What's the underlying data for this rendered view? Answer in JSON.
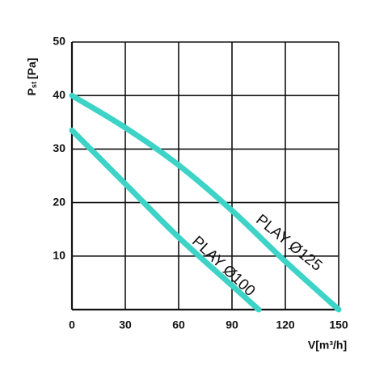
{
  "chart_data": {
    "type": "line",
    "x_label": "V[m³/h]",
    "y_label": {
      "main": "P",
      "sub": "st",
      "unit": "[Pa]"
    },
    "xlim": [
      0,
      150
    ],
    "ylim": [
      0,
      50
    ],
    "xticks": [
      0,
      30,
      60,
      90,
      120,
      150
    ],
    "yticks": [
      10,
      20,
      30,
      40,
      50
    ],
    "grid": true,
    "series": [
      {
        "name": "PLAY Ø125",
        "color": "#3ed3c7",
        "x": [
          0,
          30,
          60,
          90,
          120,
          150
        ],
        "values": [
          40,
          34,
          27,
          18.5,
          9,
          0
        ]
      },
      {
        "name": "PLAY Ø100",
        "color": "#3ed3c7",
        "x": [
          0,
          30,
          60,
          90,
          105
        ],
        "values": [
          33.5,
          23.5,
          13.5,
          4.5,
          0
        ]
      }
    ]
  }
}
